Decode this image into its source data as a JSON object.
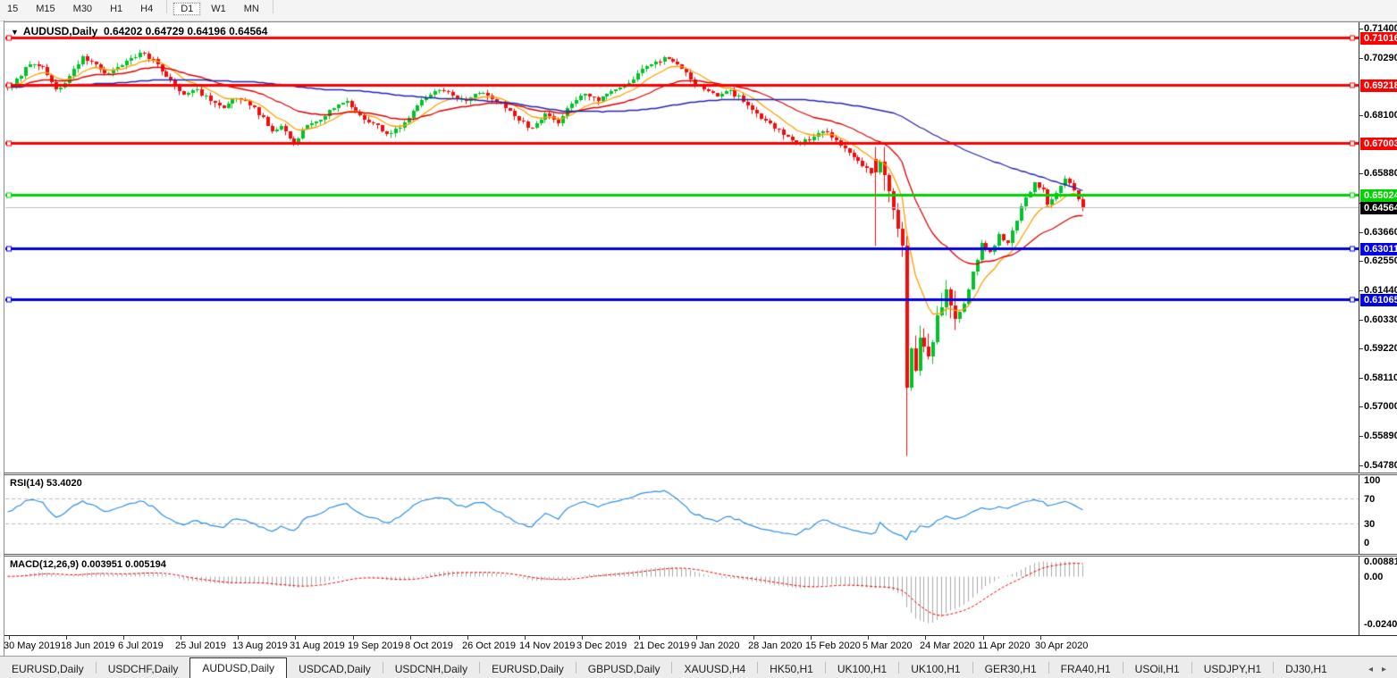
{
  "toolbar": {
    "items": [
      {
        "label": "15",
        "clipped": true
      },
      {
        "label": "M15"
      },
      {
        "label": "M30"
      },
      {
        "label": "H1"
      },
      {
        "label": "H4"
      },
      {
        "sep": true
      },
      {
        "label": "D1",
        "active": true
      },
      {
        "label": "W1"
      },
      {
        "label": "MN"
      },
      {
        "sep": true
      }
    ]
  },
  "chart": {
    "title_symbol": "AUDUSD,Daily",
    "title_values": "0.64202 0.64729 0.64196 0.64564",
    "dropdown_icon": "▼"
  },
  "indicators": {
    "rsi": {
      "text": "RSI(14) 53.4020",
      "axis": [
        "100",
        "70",
        "30",
        "0"
      ]
    },
    "macd": {
      "text": "MACD(12,26,9) 0.003951 0.005194",
      "axis": [
        "0.008815",
        "0.00",
        "-0.024082"
      ]
    }
  },
  "tabs": {
    "items": [
      "EURUSD,Daily",
      "USDCHF,Daily",
      "AUDUSD,Daily",
      "USDCAD,Daily",
      "USDCNH,Daily",
      "EURUSD,Daily",
      "GBPUSD,Daily",
      "XAUUSD,H4",
      "HK50,H1",
      "UK100,H1",
      "UK100,H1",
      "GER30,H1",
      "FRA40,H1",
      "USOil,H1",
      "USDJPY,H1",
      "DJ30,H1"
    ],
    "active_index": 2,
    "scroll_left_icon": "◂",
    "scroll_right_icon": "▸"
  },
  "colors": {
    "bull": "#00c22a",
    "bear": "#f20c0c",
    "ma_fast": "#ff9e00",
    "ma_mid": "#df0000",
    "ma_slow": "#2424ae",
    "rsi_line": "#2f8fe8",
    "rsi_level": "#bebebe",
    "macd_hist": "#a8a8a8",
    "macd_signal": "#e80000",
    "current_line": "#bdbdbd",
    "current_badge": "#000000",
    "resistance": "#ff0000",
    "support_green": "#00d300",
    "support_blue": "#0000ea"
  },
  "chart_data": {
    "type": "candlestick",
    "symbol": "AUDUSD",
    "timeframe": "Daily",
    "last_ohlc": {
      "open": 0.64202,
      "high": 0.64729,
      "low": 0.64196,
      "close": 0.64564
    },
    "price_range": [
      0.545,
      0.716
    ],
    "num_candles": 245,
    "last_close": 0.64564,
    "current_price": 0.64564,
    "y_ticks": [
      "0.71400",
      "0.70290",
      "0.68100",
      "0.65880",
      "0.64770",
      "0.63660",
      "0.62550",
      "0.61440",
      "0.60330",
      "0.59220",
      "0.58110",
      "0.57000",
      "0.55890",
      "0.54780"
    ],
    "hlines": [
      {
        "price": 0.71016,
        "label": "0.71016",
        "color": "#ff0000"
      },
      {
        "price": 0.69218,
        "label": "0.69218",
        "color": "#ff0000"
      },
      {
        "price": 0.67003,
        "label": "0.67003",
        "color": "#ff0000"
      },
      {
        "price": 0.65024,
        "label": "0.65024",
        "color": "#00d300"
      },
      {
        "price": 0.63011,
        "label": "0.63011",
        "color": "#0000ea"
      },
      {
        "price": 0.61065,
        "label": "0.61065",
        "color": "#0000ea"
      }
    ],
    "current_label": "0.64564",
    "date_ticks": [
      {
        "i": 0,
        "label": "30 May 2019"
      },
      {
        "i": 13,
        "label": "18 Jun 2019"
      },
      {
        "i": 26,
        "label": "6 Jul 2019"
      },
      {
        "i": 39,
        "label": "25 Jul 2019"
      },
      {
        "i": 52,
        "label": "13 Aug 2019"
      },
      {
        "i": 65,
        "label": "31 Aug 2019"
      },
      {
        "i": 78,
        "label": "19 Sep 2019"
      },
      {
        "i": 91,
        "label": "8 Oct 2019"
      },
      {
        "i": 104,
        "label": "26 Oct 2019"
      },
      {
        "i": 117,
        "label": "14 Nov 2019"
      },
      {
        "i": 130,
        "label": "3 Dec 2019"
      },
      {
        "i": 143,
        "label": "21 Dec 2019"
      },
      {
        "i": 156,
        "label": "9 Jan 2020"
      },
      {
        "i": 169,
        "label": "28 Jan 2020"
      },
      {
        "i": 182,
        "label": "15 Feb 2020"
      },
      {
        "i": 195,
        "label": "5 Mar 2020"
      },
      {
        "i": 208,
        "label": "24 Mar 2020"
      },
      {
        "i": 221,
        "label": "11 Apr 2020"
      },
      {
        "i": 234,
        "label": "30 Apr 2020"
      }
    ],
    "close_anchors": [
      [
        0,
        0.6915
      ],
      [
        2,
        0.6945
      ],
      [
        5,
        0.7
      ],
      [
        8,
        0.699
      ],
      [
        11,
        0.6905
      ],
      [
        13,
        0.693
      ],
      [
        17,
        0.703
      ],
      [
        19,
        0.701
      ],
      [
        22,
        0.6965
      ],
      [
        25,
        0.699
      ],
      [
        28,
        0.7025
      ],
      [
        31,
        0.704
      ],
      [
        34,
        0.7
      ],
      [
        37,
        0.694
      ],
      [
        40,
        0.6885
      ],
      [
        43,
        0.6905
      ],
      [
        46,
        0.686
      ],
      [
        49,
        0.6835
      ],
      [
        52,
        0.687
      ],
      [
        55,
        0.6845
      ],
      [
        58,
        0.68
      ],
      [
        60,
        0.6745
      ],
      [
        62,
        0.6765
      ],
      [
        65,
        0.6705
      ],
      [
        68,
        0.677
      ],
      [
        71,
        0.679
      ],
      [
        74,
        0.6835
      ],
      [
        77,
        0.686
      ],
      [
        80,
        0.6805
      ],
      [
        83,
        0.6775
      ],
      [
        86,
        0.6735
      ],
      [
        89,
        0.676
      ],
      [
        92,
        0.6825
      ],
      [
        95,
        0.6875
      ],
      [
        98,
        0.69
      ],
      [
        101,
        0.6882
      ],
      [
        104,
        0.6862
      ],
      [
        107,
        0.689
      ],
      [
        110,
        0.6868
      ],
      [
        113,
        0.6832
      ],
      [
        116,
        0.6785
      ],
      [
        119,
        0.6758
      ],
      [
        122,
        0.6812
      ],
      [
        125,
        0.6775
      ],
      [
        128,
        0.685
      ],
      [
        131,
        0.6888
      ],
      [
        134,
        0.6862
      ],
      [
        137,
        0.6898
      ],
      [
        140,
        0.6925
      ],
      [
        143,
        0.6965
      ],
      [
        146,
        0.7
      ],
      [
        149,
        0.7028
      ],
      [
        152,
        0.7
      ],
      [
        155,
        0.6942
      ],
      [
        158,
        0.6905
      ],
      [
        161,
        0.6878
      ],
      [
        164,
        0.69
      ],
      [
        167,
        0.6858
      ],
      [
        170,
        0.6812
      ],
      [
        173,
        0.6775
      ],
      [
        176,
        0.673
      ],
      [
        179,
        0.6695
      ],
      [
        182,
        0.6712
      ],
      [
        185,
        0.6745
      ],
      [
        188,
        0.6712
      ],
      [
        190,
        0.668
      ],
      [
        192,
        0.6645
      ],
      [
        194,
        0.6612
      ],
      [
        196,
        0.6585
      ],
      [
        198,
        0.663
      ],
      [
        199,
        0.658
      ],
      [
        201,
        0.6445
      ],
      [
        203,
        0.631
      ],
      [
        204,
        0.577
      ],
      [
        205,
        0.592
      ],
      [
        206,
        0.5835
      ],
      [
        207,
        0.596
      ],
      [
        209,
        0.589
      ],
      [
        211,
        0.6045
      ],
      [
        213,
        0.6145
      ],
      [
        215,
        0.603
      ],
      [
        217,
        0.609
      ],
      [
        219,
        0.621
      ],
      [
        221,
        0.632
      ],
      [
        223,
        0.6285
      ],
      [
        225,
        0.6355
      ],
      [
        227,
        0.632
      ],
      [
        229,
        0.6405
      ],
      [
        231,
        0.6495
      ],
      [
        233,
        0.655
      ],
      [
        235,
        0.6525
      ],
      [
        236,
        0.6465
      ],
      [
        238,
        0.651
      ],
      [
        240,
        0.6565
      ],
      [
        242,
        0.652
      ],
      [
        244,
        0.64564
      ]
    ],
    "forced": [
      {
        "i": 197,
        "open": 0.664,
        "close": 0.659,
        "high": 0.6688,
        "low": 0.631
      },
      {
        "i": 204,
        "close": 0.577,
        "low": 0.551
      }
    ],
    "noise": {
      "seed": 7,
      "amp": 0.0009,
      "wick": 0.0016,
      "wild_from": 199,
      "wild_to": 216,
      "wild_amp": 0.0038,
      "wild_wick": 0.006
    },
    "moving_averages": [
      {
        "type": "ema",
        "period": 10,
        "color": "#ff9e00"
      },
      {
        "type": "ema",
        "period": 30,
        "color": "#df0000"
      },
      {
        "type": "sma",
        "period": 90,
        "color": "#2424ae"
      }
    ],
    "rsi": {
      "period": 14,
      "current": 53.402,
      "range": [
        0,
        100
      ],
      "levels": [
        70,
        30
      ]
    },
    "macd": {
      "fast": 12,
      "slow": 26,
      "signal": 9,
      "current_macd": 0.003951,
      "current_signal": 0.005194,
      "axis_max": 0.008815,
      "axis_min": -0.024082
    }
  }
}
